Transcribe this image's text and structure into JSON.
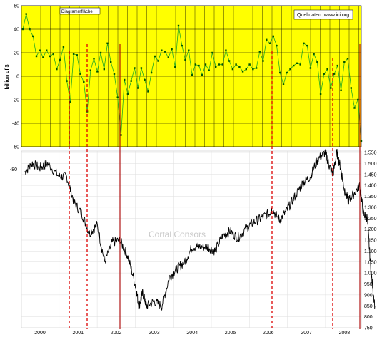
{
  "chart_data": [
    {
      "type": "line",
      "ylabel": "billion of $",
      "ylim": [
        -60,
        60
      ],
      "yticks": [
        "60",
        "40",
        "20",
        "0",
        "-20",
        "-40",
        "-60"
      ],
      "background": "#ffff00",
      "line_color": "#22aa22",
      "marker_color": "#005500",
      "box_label": "Diagrammfläche",
      "source_label": "Quelldaten: www.ici.org",
      "series": [
        {
          "values": [
            40,
            53,
            40,
            34,
            17,
            22,
            16,
            22,
            17,
            19,
            6,
            14,
            25,
            -4,
            -22,
            19,
            18,
            2,
            -5,
            -30,
            5,
            15,
            4,
            20,
            6,
            28,
            12,
            2,
            -18,
            -50,
            -3,
            -15,
            -4,
            7,
            -10,
            7,
            -3,
            -13,
            3,
            17,
            13,
            22,
            21,
            16,
            23,
            8,
            43,
            26,
            14,
            22,
            1,
            10,
            9,
            1,
            10,
            5,
            20,
            8,
            10,
            10,
            22,
            13,
            6,
            10,
            8,
            4,
            6,
            10,
            6,
            7,
            21,
            13,
            31,
            28,
            34,
            26,
            3,
            -7,
            3,
            6,
            9,
            11,
            10,
            28,
            26,
            7,
            19,
            12,
            -15,
            2,
            6,
            -10,
            2,
            9,
            -12,
            12,
            15,
            -10,
            -27,
            -20,
            -55
          ]
        }
      ]
    },
    {
      "type": "line",
      "yticks": [
        "1.550",
        "1.500",
        "1.450",
        "1.400",
        "1.350",
        "1.300",
        "1.250",
        "1.200",
        "1.150",
        "1.100",
        "1.050",
        "1.000",
        "950",
        "900",
        "850",
        "800",
        "750"
      ],
      "left_tick": "-80",
      "xticks": [
        "2000",
        "2001",
        "2002",
        "2003",
        "2004",
        "2005",
        "2006",
        "2007",
        "2008"
      ],
      "watermark": "Cortal Consors",
      "series": [
        {
          "x": [
            1999.6,
            1999.8,
            2000.0,
            2000.2,
            2000.5,
            2000.7,
            2000.9,
            2001.1,
            2001.3,
            2001.5,
            2001.7,
            2001.9,
            2002.1,
            2002.3,
            2002.5,
            2002.6,
            2002.7,
            2002.8,
            2003.0,
            2003.2,
            2003.4,
            2003.6,
            2003.8,
            2004.0,
            2004.2,
            2004.4,
            2004.6,
            2004.8,
            2005.0,
            2005.2,
            2005.4,
            2005.6,
            2005.8,
            2006.0,
            2006.1,
            2006.3,
            2006.5,
            2006.7,
            2006.9,
            2007.1,
            2007.3,
            2007.5,
            2007.6,
            2007.7,
            2007.8,
            2007.9,
            2008.0,
            2008.1,
            2008.2,
            2008.4,
            2008.5,
            2008.6,
            2008.7,
            2008.8
          ],
          "values": [
            1460,
            1500,
            1480,
            1500,
            1440,
            1440,
            1320,
            1270,
            1180,
            1220,
            1050,
            1140,
            1150,
            1080,
            950,
            850,
            910,
            850,
            870,
            850,
            980,
            1020,
            1050,
            1120,
            1120,
            1120,
            1100,
            1170,
            1190,
            1160,
            1200,
            1230,
            1250,
            1270,
            1290,
            1240,
            1290,
            1350,
            1410,
            1440,
            1520,
            1550,
            1490,
            1450,
            1550,
            1480,
            1380,
            1330,
            1350,
            1400,
            1270,
            1250,
            1000,
            850
          ]
        }
      ]
    }
  ],
  "event_lines": {
    "dashed_color": "#dd0000",
    "solid_color": "#aa0000"
  }
}
